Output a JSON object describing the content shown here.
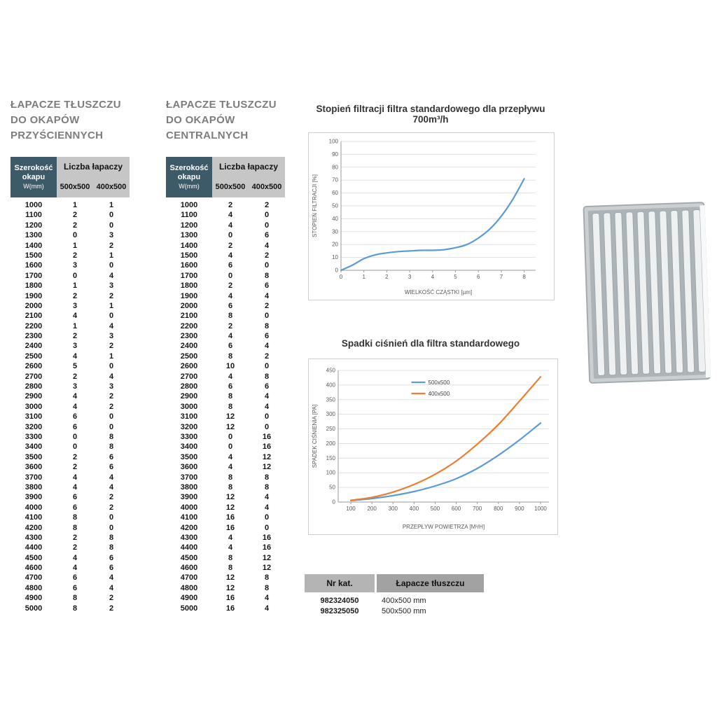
{
  "tables": {
    "wall": {
      "title_lines": [
        "ŁAPACZE TŁUSZCZU",
        "DO OKAPÓW",
        "PRZYŚCIENNYCH"
      ],
      "header": {
        "width_label1": "Szerokość",
        "width_label2": "okapu",
        "width_label3": "W(mm)",
        "count_label": "Liczba łapaczy",
        "sub_col1": "500x500",
        "sub_col2": "400x500"
      },
      "rows": [
        [
          1000,
          1,
          1
        ],
        [
          1100,
          2,
          0
        ],
        [
          1200,
          2,
          0
        ],
        [
          1300,
          0,
          3
        ],
        [
          1400,
          1,
          2
        ],
        [
          1500,
          2,
          1
        ],
        [
          1600,
          3,
          0
        ],
        [
          1700,
          0,
          4
        ],
        [
          1800,
          1,
          3
        ],
        [
          1900,
          2,
          2
        ],
        [
          2000,
          3,
          1
        ],
        [
          2100,
          4,
          0
        ],
        [
          2200,
          1,
          4
        ],
        [
          2300,
          2,
          3
        ],
        [
          2400,
          3,
          2
        ],
        [
          2500,
          4,
          1
        ],
        [
          2600,
          5,
          0
        ],
        [
          2700,
          2,
          4
        ],
        [
          2800,
          3,
          3
        ],
        [
          2900,
          4,
          2
        ],
        [
          3000,
          4,
          2
        ],
        [
          3100,
          6,
          0
        ],
        [
          3200,
          6,
          0
        ],
        [
          3300,
          0,
          8
        ],
        [
          3400,
          0,
          8
        ],
        [
          3500,
          2,
          6
        ],
        [
          3600,
          2,
          6
        ],
        [
          3700,
          4,
          4
        ],
        [
          3800,
          4,
          4
        ],
        [
          3900,
          6,
          2
        ],
        [
          4000,
          6,
          2
        ],
        [
          4100,
          8,
          0
        ],
        [
          4200,
          8,
          0
        ],
        [
          4300,
          2,
          8
        ],
        [
          4400,
          2,
          8
        ],
        [
          4500,
          4,
          6
        ],
        [
          4600,
          4,
          6
        ],
        [
          4700,
          6,
          4
        ],
        [
          4800,
          6,
          4
        ],
        [
          4900,
          8,
          2
        ],
        [
          5000,
          8,
          2
        ]
      ]
    },
    "central": {
      "title_lines": [
        "ŁAPACZE TŁUSZCZU",
        "DO OKAPÓW",
        "CENTRALNYCH"
      ],
      "header": {
        "width_label1": "Szerokość",
        "width_label2": "okapu",
        "width_label3": "W(mm)",
        "count_label": "Liczba łapaczy",
        "sub_col1": "500x500",
        "sub_col2": "400x500"
      },
      "rows": [
        [
          1000,
          2,
          2
        ],
        [
          1100,
          4,
          0
        ],
        [
          1200,
          4,
          0
        ],
        [
          1300,
          0,
          6
        ],
        [
          1400,
          2,
          4
        ],
        [
          1500,
          4,
          2
        ],
        [
          1600,
          6,
          0
        ],
        [
          1700,
          0,
          8
        ],
        [
          1800,
          2,
          6
        ],
        [
          1900,
          4,
          4
        ],
        [
          2000,
          6,
          2
        ],
        [
          2100,
          8,
          0
        ],
        [
          2200,
          2,
          8
        ],
        [
          2300,
          4,
          6
        ],
        [
          2400,
          6,
          4
        ],
        [
          2500,
          8,
          2
        ],
        [
          2600,
          10,
          0
        ],
        [
          2700,
          4,
          8
        ],
        [
          2800,
          6,
          6
        ],
        [
          2900,
          8,
          4
        ],
        [
          3000,
          8,
          4
        ],
        [
          3100,
          12,
          0
        ],
        [
          3200,
          12,
          0
        ],
        [
          3300,
          0,
          16
        ],
        [
          3400,
          0,
          16
        ],
        [
          3500,
          4,
          12
        ],
        [
          3600,
          4,
          12
        ],
        [
          3700,
          8,
          8
        ],
        [
          3800,
          8,
          8
        ],
        [
          3900,
          12,
          4
        ],
        [
          4000,
          12,
          4
        ],
        [
          4100,
          16,
          0
        ],
        [
          4200,
          16,
          0
        ],
        [
          4300,
          4,
          16
        ],
        [
          4400,
          4,
          16
        ],
        [
          4500,
          8,
          12
        ],
        [
          4600,
          8,
          12
        ],
        [
          4700,
          12,
          8
        ],
        [
          4800,
          12,
          8
        ],
        [
          4900,
          16,
          4
        ],
        [
          5000,
          16,
          4
        ]
      ]
    }
  },
  "chart_data": [
    {
      "type": "line",
      "title": "Stopień filtracji filtra standardowego dla przepływu 700m³/h",
      "xlabel": "WIELKOŚĆ CZĄSTKI [µm]",
      "ylabel": "STOPIEŃ FILTRACJI [%]",
      "xlim": [
        0,
        8.5
      ],
      "ylim": [
        0,
        100
      ],
      "xticks": [
        0,
        1,
        2,
        3,
        4,
        5,
        6,
        7,
        8
      ],
      "yticks": [
        0,
        10,
        20,
        30,
        40,
        50,
        60,
        70,
        80,
        90,
        100
      ],
      "grid": "horizontal",
      "legend": false,
      "series": [
        {
          "name": "stopień filtracji",
          "color": "#5B9BD5",
          "x": [
            0,
            0.5,
            1,
            1.5,
            2,
            2.5,
            3,
            3.5,
            4,
            4.5,
            5,
            5.5,
            6,
            6.5,
            7,
            7.5,
            8
          ],
          "y": [
            0,
            4,
            9,
            12,
            13.5,
            14.5,
            15,
            15.5,
            15.5,
            16,
            17.5,
            20,
            25,
            32,
            42,
            55,
            71
          ]
        }
      ]
    },
    {
      "type": "line",
      "title": "Spadki ciśnień dla filtra standardowego",
      "xlabel": "PRZEPŁYW POWIETRZA [M³/H]",
      "ylabel": "SPADEK CIŚNIENIA [PA]",
      "xlim": [
        40,
        1040
      ],
      "ylim": [
        0,
        450
      ],
      "xticks": [
        100,
        200,
        300,
        400,
        500,
        600,
        700,
        800,
        900,
        1000
      ],
      "yticks": [
        0,
        50,
        100,
        150,
        200,
        250,
        300,
        350,
        400,
        450
      ],
      "grid": "horizontal",
      "legend": true,
      "legend_position": "top-center",
      "series": [
        {
          "name": "500x500",
          "color": "#5B9BD5",
          "x": [
            100,
            200,
            300,
            400,
            500,
            600,
            700,
            800,
            900,
            1000
          ],
          "y": [
            5,
            12,
            22,
            36,
            55,
            80,
            115,
            160,
            212,
            270
          ]
        },
        {
          "name": "400x500",
          "color": "#ED7D31",
          "x": [
            100,
            200,
            300,
            400,
            500,
            600,
            700,
            800,
            900,
            1000
          ],
          "y": [
            6,
            16,
            34,
            60,
            95,
            140,
            198,
            265,
            345,
            428
          ]
        }
      ]
    }
  ],
  "catalog": {
    "headers": [
      "Nr kat.",
      "Łapacze tłuszczu"
    ],
    "rows": [
      [
        "982324050",
        "400x500 mm"
      ],
      [
        "982325050",
        "500x500 mm"
      ]
    ]
  },
  "filter_image": {
    "label": "grease-filter-photo"
  },
  "colors": {
    "header_dark": "#3c5a68",
    "header_gray": "#c6c6c6",
    "title_gray": "#7d7d7d",
    "series_blue": "#5B9BD5",
    "series_orange": "#ED7D31"
  }
}
